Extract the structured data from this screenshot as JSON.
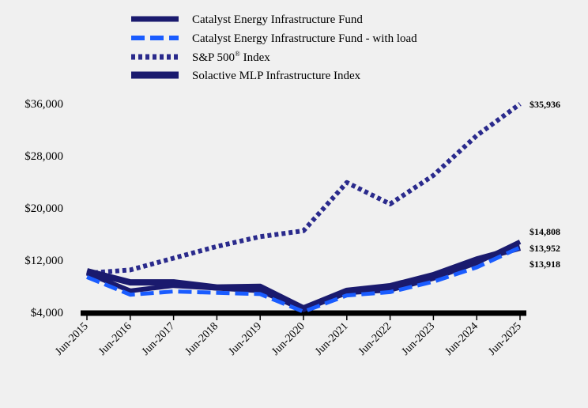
{
  "chart_data": {
    "type": "line",
    "title": "",
    "xlabel": "",
    "ylabel": "",
    "categories": [
      "Jun-2015",
      "Jun-2016",
      "Jun-2017",
      "Jun-2018",
      "Jun-2019",
      "Jun-2020",
      "Jun-2021",
      "Jun-2022",
      "Jun-2023",
      "Jun-2024",
      "Jun-2025"
    ],
    "ylim": [
      4000,
      36000
    ],
    "yticks": [
      4000,
      12000,
      20000,
      28000,
      36000
    ],
    "ytick_labels": [
      "$4,000",
      "$12,000",
      "$20,000",
      "$28,000",
      "$36,000"
    ],
    "legend_position": "top",
    "series": [
      {
        "name": "Catalyst Energy Infrastructure Fund",
        "color": "#1a1a6e",
        "style": "solid",
        "values": [
          10000,
          7300,
          8100,
          7700,
          7300,
          4400,
          7000,
          7400,
          9200,
          11600,
          14808
        ],
        "end_label": "$14,808"
      },
      {
        "name": "Catalyst Energy Infrastructure Fund - with load",
        "color": "#1a5cff",
        "style": "dashed",
        "values": [
          9400,
          6700,
          7200,
          7000,
          6800,
          4100,
          6600,
          7100,
          8700,
          10900,
          13952
        ],
        "end_label": "$13,952"
      },
      {
        "name": "S&P 500",
        "name_superscript": "®",
        "name_suffix": " Index",
        "color": "#2a2a8c",
        "style": "dotted",
        "values": [
          10000,
          10500,
          12300,
          14100,
          15600,
          16500,
          23900,
          20600,
          25000,
          31100,
          35936
        ],
        "end_label": "$35,936"
      },
      {
        "name": "Solactive MLP Infrastructure Index",
        "color": "#1a1a6e",
        "style": "solid-thick",
        "values": [
          10300,
          8600,
          8600,
          7800,
          7900,
          4600,
          7300,
          8000,
          9700,
          12100,
          13918
        ],
        "end_label": "$13,918"
      }
    ]
  }
}
